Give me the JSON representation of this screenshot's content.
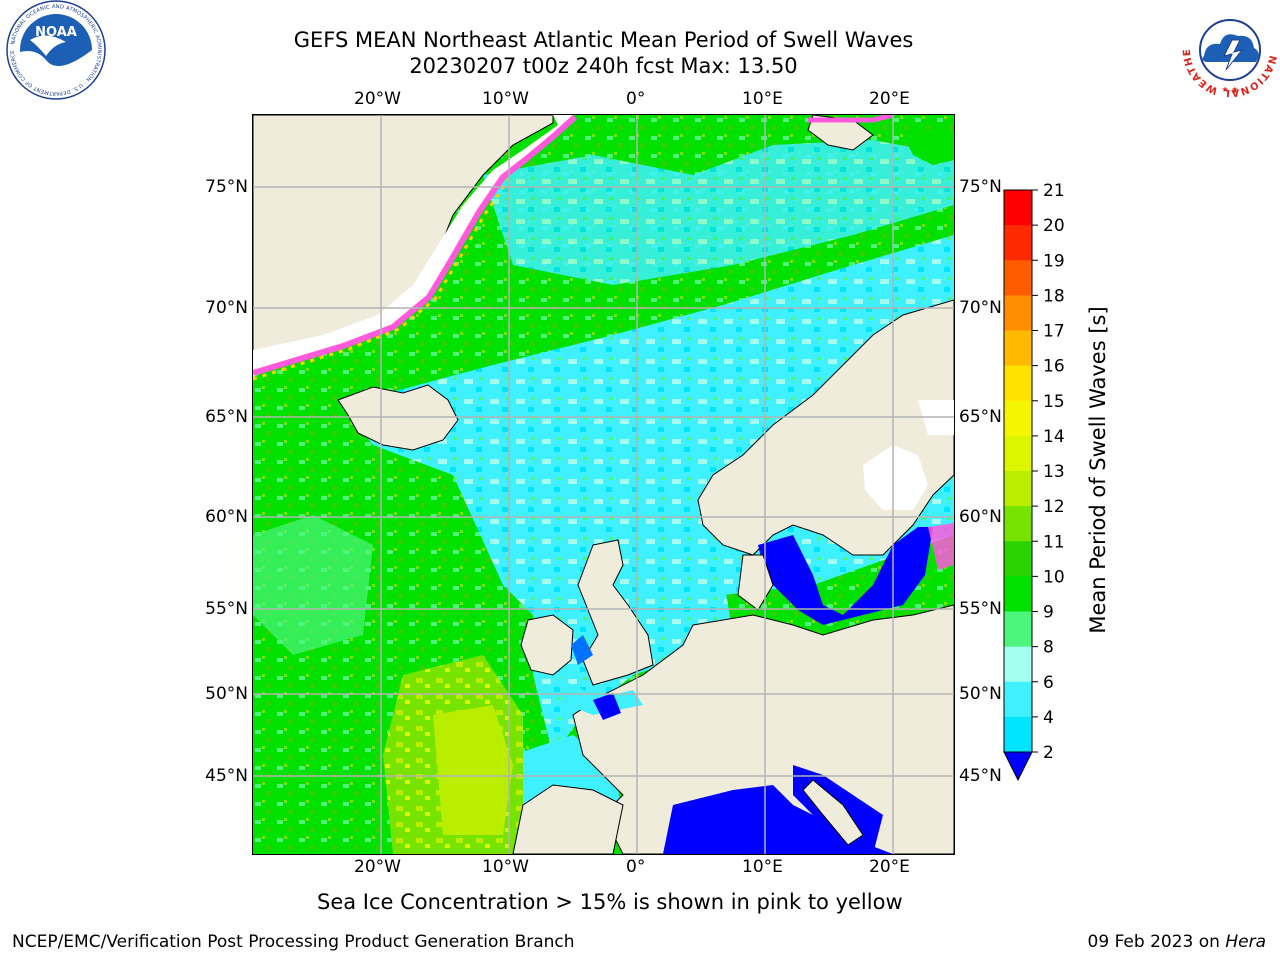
{
  "title_line1": "GEFS MEAN Northeast Atlantic Mean Period of Swell Waves",
  "title_line2": "20230207 t00z 240h fcst   Max: 13.50",
  "lon_labels": [
    "20°W",
    "10°W",
    "0°",
    "10°E",
    "20°E"
  ],
  "lat_labels": [
    "75°N",
    "70°N",
    "65°N",
    "60°N",
    "55°N",
    "50°N",
    "45°N"
  ],
  "colorbar": {
    "title": "Mean Period of Swell Waves [s]",
    "ticks": [
      "2",
      "4",
      "6",
      "8",
      "9",
      "10",
      "11",
      "12",
      "13",
      "14",
      "15",
      "16",
      "17",
      "18",
      "19",
      "20",
      "21"
    ],
    "colors": [
      "#0072ff",
      "#00e5ff",
      "#3ff1ff",
      "#a5fff0",
      "#4df57d",
      "#00e100",
      "#2bd400",
      "#77e300",
      "#b9ee00",
      "#dcf500",
      "#f5f500",
      "#ffe300",
      "#ffb900",
      "#ff8f00",
      "#ff5c00",
      "#ff2a00",
      "#ff0000"
    ],
    "underflow_color": "#0000ff"
  },
  "footnote": "Sea Ice Concentration > 15% is shown in pink to yellow",
  "credit_left": "NCEP/EMC/Verification Post Processing Product Generation Branch",
  "credit_date": "09 Feb 2023 on ",
  "credit_host": "Hera",
  "logos": {
    "left": "noaa-logo",
    "left_ring_text": "NATIONAL OCEANIC AND ATMOSPHERIC ADMINISTRATION · U.S. DEPARTMENT OF COMMERCE",
    "left_center_text": "NOAA",
    "right": "nws-logo",
    "right_ring_text": "NATIONAL WEATHER SERVICE"
  },
  "colors": {
    "land": "#efecdc",
    "ice": "#ffffff",
    "grid": "#b4b4b4"
  }
}
